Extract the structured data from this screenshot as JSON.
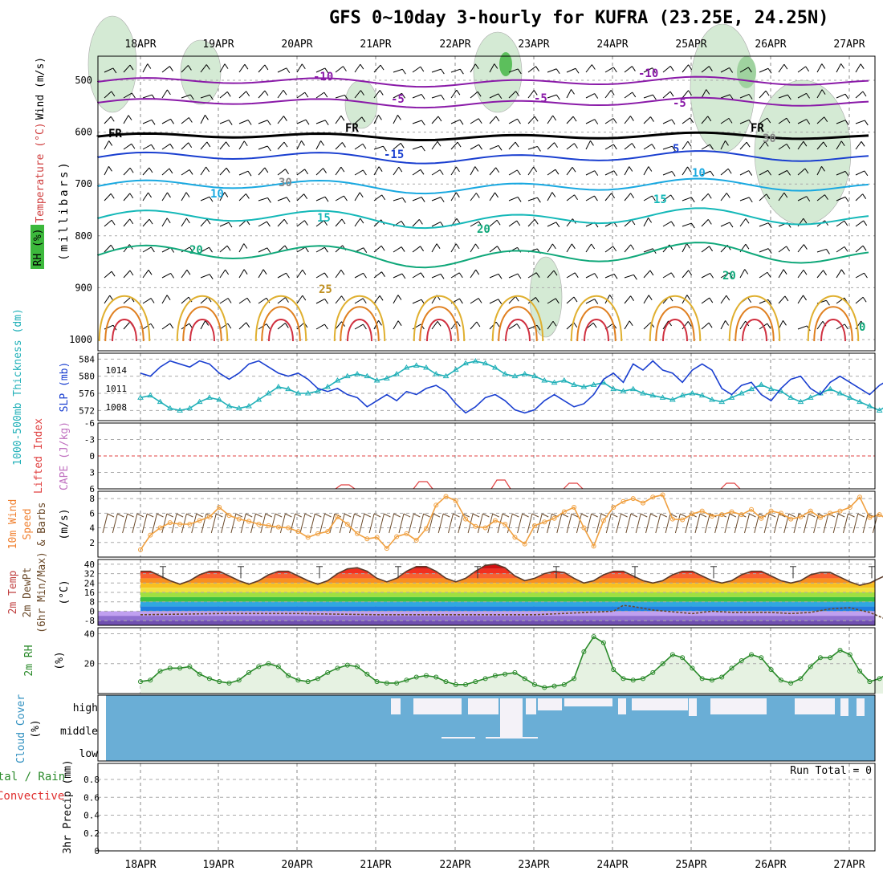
{
  "title": "GFS 0~10day 3-hourly for KUFRA (23.25E, 24.25N)",
  "days": [
    "18APR",
    "19APR",
    "20APR",
    "21APR",
    "22APR",
    "23APR",
    "24APR",
    "25APR",
    "26APR",
    "27APR"
  ],
  "panels": {
    "upper": {
      "ylabel_wind": "Wind (m/s)",
      "ylabel_temp": "Temperature (°C)",
      "ylabel_rh": "RH (%)",
      "ylabel_units": "(millibars)",
      "yticks": [
        "500",
        "600",
        "700",
        "800",
        "900",
        "1000"
      ],
      "labels": [
        "-10",
        "-10",
        "-5",
        "-5",
        "FR",
        "FR",
        "FR",
        "-5",
        "5",
        "-15",
        "10",
        "10",
        "15",
        "15",
        "20",
        "20",
        "20",
        "25",
        "0",
        "30",
        "30"
      ]
    },
    "thickness": {
      "ylabel_left": "1000-500mb Thickness (dm)",
      "ylabel_right": "SLP (mb)",
      "yticks_left": [
        "584",
        "580",
        "576",
        "572"
      ],
      "yticks_right": [
        "1014",
        "1011",
        "1008"
      ]
    },
    "cape": {
      "ylabel_left": "Lifted Index",
      "ylabel_right": "CAPE (J/kg)",
      "yticks": [
        "-6",
        "-3",
        "0",
        "3",
        "6"
      ]
    },
    "wind10": {
      "ylabel_a": "10m Wind",
      "ylabel_b": "Speed",
      "ylabel_c": "& Barbs",
      "ylabel_units": "(m/s)",
      "yticks": [
        "8",
        "6",
        "4",
        "2"
      ]
    },
    "temp2m": {
      "ylabel_a": "2m Temp",
      "ylabel_b": "2m DewPt",
      "ylabel_c": "(6hr Min/Max)",
      "ylabel_units": "(°C)",
      "yticks": [
        "40",
        "32",
        "24",
        "16",
        "8",
        "0",
        "-8"
      ]
    },
    "rh2m": {
      "ylabel": "2m RH",
      "ylabel_units": "(%)",
      "yticks": [
        "40",
        "20"
      ]
    },
    "cloud": {
      "ylabel": "Cloud Cover",
      "ylabel_units": "(%)",
      "levels": [
        "high",
        "middle",
        "low"
      ]
    },
    "precip": {
      "ylabel_a": "Total / Rain",
      "ylabel_b": "Convective",
      "ylabel_c": "3hr Precip (mm)",
      "yticks": [
        "0.8",
        "0.6",
        "0.4",
        "0.2",
        "0"
      ],
      "run_total": "Run Total = 0"
    }
  },
  "chart_data": [
    {
      "type": "line",
      "name": "sea level pressure",
      "ylabel": "SLP (mb)",
      "x_hours": [
        0,
        3,
        6,
        9,
        12,
        15,
        18,
        21,
        24,
        27,
        30,
        33,
        36,
        39,
        42,
        45,
        48,
        51,
        54,
        57,
        60,
        63,
        66,
        69,
        72,
        75,
        78,
        81,
        84,
        87,
        90,
        93,
        96,
        99,
        102,
        105,
        108,
        111,
        114,
        117,
        120,
        123,
        126,
        129,
        132,
        135,
        138,
        141,
        144,
        147,
        150,
        153,
        156,
        159,
        162,
        165,
        168,
        171,
        174,
        177,
        180,
        183,
        186,
        189,
        192,
        195,
        198,
        201,
        204,
        207,
        210,
        213,
        216,
        219,
        222,
        225,
        228,
        231,
        234
      ],
      "values": [
        1013.5,
        1013,
        1014.5,
        1015.5,
        1015,
        1014.5,
        1015.5,
        1015,
        1013.5,
        1012.5,
        1013.5,
        1015,
        1015.5,
        1014.5,
        1013.5,
        1013,
        1013.5,
        1012.5,
        1011,
        1010.5,
        1011,
        1010,
        1009.5,
        1008,
        1009,
        1010,
        1009,
        1010.5,
        1010,
        1011,
        1011.5,
        1010.5,
        1008.5,
        1007,
        1008,
        1009.5,
        1010,
        1009,
        1007.5,
        1007,
        1007.5,
        1009,
        1010,
        1009,
        1008,
        1008.5,
        1010,
        1012.5,
        1013.5,
        1012,
        1015,
        1014,
        1015.5,
        1014,
        1013.5,
        1012,
        1014,
        1015,
        1014,
        1011,
        1010,
        1011.5,
        1012,
        1010,
        1009,
        1011,
        1012.5,
        1013,
        1011,
        1010,
        1012,
        1013,
        1012,
        1011,
        1010,
        1011.5,
        1012.5,
        1013,
        1015
      ],
      "ylim": [
        1006,
        1016.5
      ]
    },
    {
      "type": "line",
      "name": "1000-500mb thickness",
      "ylabel": "1000-500mb Thickness (dm)",
      "x_hours": [
        0,
        3,
        6,
        9,
        12,
        15,
        18,
        21,
        24,
        27,
        30,
        33,
        36,
        39,
        42,
        45,
        48,
        51,
        54,
        57,
        60,
        63,
        66,
        69,
        72,
        75,
        78,
        81,
        84,
        87,
        90,
        93,
        96,
        99,
        102,
        105,
        108,
        111,
        114,
        117,
        120,
        123,
        126,
        129,
        132,
        135,
        138,
        141,
        144,
        147,
        150,
        153,
        156,
        159,
        162,
        165,
        168,
        171,
        174,
        177,
        180,
        183,
        186,
        189,
        192,
        195,
        198,
        201,
        204,
        207,
        210,
        213,
        216,
        219,
        222,
        225,
        228,
        231,
        234
      ],
      "values": [
        575,
        575.5,
        574,
        572.5,
        572,
        572.5,
        574,
        575,
        574.5,
        573,
        572.5,
        573,
        574.5,
        576,
        577.5,
        577,
        576,
        576,
        576.5,
        577.5,
        579,
        580,
        580.5,
        580,
        579,
        579.5,
        580.5,
        582,
        582.5,
        582,
        580.5,
        580,
        581.5,
        583,
        583.5,
        583,
        582,
        580.5,
        580,
        580.5,
        580,
        579,
        578.5,
        579,
        578,
        577.5,
        578,
        578.5,
        577,
        576.5,
        577,
        576,
        575.5,
        575,
        574.5,
        575.5,
        576,
        575.5,
        574.5,
        574,
        575,
        576,
        577,
        578,
        577,
        576.5,
        575,
        574,
        575,
        576,
        577,
        576,
        575,
        574,
        573,
        572,
        573.5,
        574,
        572
      ],
      "ylim": [
        570,
        585
      ]
    },
    {
      "type": "line",
      "name": "10m wind speed",
      "ylabel": "(m/s)",
      "x_hours": [
        0,
        3,
        6,
        9,
        12,
        15,
        18,
        21,
        24,
        27,
        30,
        33,
        36,
        39,
        42,
        45,
        48,
        51,
        54,
        57,
        60,
        63,
        66,
        69,
        72,
        75,
        78,
        81,
        84,
        87,
        90,
        93,
        96,
        99,
        102,
        105,
        108,
        111,
        114,
        117,
        120,
        123,
        126,
        129,
        132,
        135,
        138,
        141,
        144,
        147,
        150,
        153,
        156,
        159,
        162,
        165,
        168,
        171,
        174,
        177,
        180,
        183,
        186,
        189,
        192,
        195,
        198,
        201,
        204,
        207,
        210,
        213,
        216,
        219,
        222,
        225,
        228,
        231,
        234
      ],
      "values": [
        1,
        3,
        4,
        4.7,
        4.5,
        4.5,
        5,
        5.5,
        6.8,
        5.7,
        5.2,
        4.9,
        4.5,
        4.3,
        4.1,
        4,
        3.5,
        2.7,
        3.2,
        3.5,
        5.5,
        4.5,
        3.2,
        2.5,
        2.7,
        1.2,
        2.8,
        3.2,
        2.3,
        3.9,
        7.1,
        8.3,
        7.7,
        5.2,
        4.2,
        4,
        5,
        4.5,
        2.7,
        1.8,
        4.3,
        4.8,
        5.3,
        6.2,
        6.8,
        4,
        1.5,
        5,
        6.8,
        7.6,
        8,
        7.4,
        8.2,
        8.5,
        5.2,
        5.1,
        5.9,
        6.3,
        5.6,
        5.8,
        6.2,
        5.8,
        6.5,
        5.3,
        6.3,
        6,
        5.2,
        5.5,
        6.3,
        5.4,
        6,
        6.3,
        6.8,
        8.2,
        5.4,
        5.8,
        5,
        4.6,
        4.7
      ],
      "ylim": [
        0,
        9
      ]
    },
    {
      "type": "line",
      "name": "2m temperature",
      "ylabel": "(°C)",
      "x_hours": [
        0,
        3,
        6,
        9,
        12,
        15,
        18,
        21,
        24,
        27,
        30,
        33,
        36,
        39,
        42,
        45,
        48,
        51,
        54,
        57,
        60,
        63,
        66,
        69,
        72,
        75,
        78,
        81,
        84,
        87,
        90,
        93,
        96,
        99,
        102,
        105,
        108,
        111,
        114,
        117,
        120,
        123,
        126,
        129,
        132,
        135,
        138,
        141,
        144,
        147,
        150,
        153,
        156,
        159,
        162,
        165,
        168,
        171,
        174,
        177,
        180,
        183,
        186,
        189,
        192,
        195,
        198,
        201,
        204,
        207,
        210,
        213,
        216,
        219,
        222,
        225,
        228,
        231,
        234
      ],
      "values": [
        34,
        34,
        30,
        26,
        23,
        26,
        31,
        34,
        34,
        30,
        26,
        23,
        26,
        31,
        34,
        34,
        30,
        26,
        23,
        26,
        32,
        36,
        37,
        34,
        28,
        25,
        28,
        34,
        38,
        38,
        34,
        28,
        25,
        28,
        34,
        39,
        40,
        37,
        30,
        26,
        28,
        32,
        34,
        33,
        28,
        24,
        26,
        31,
        34,
        34,
        30,
        26,
        24,
        26,
        31,
        34,
        34,
        30,
        26,
        24,
        26,
        31,
        34,
        34,
        30,
        26,
        24,
        26,
        31,
        33,
        33,
        29,
        25,
        22,
        24,
        28,
        32,
        31,
        28
      ],
      "ylim": [
        -12,
        44
      ]
    },
    {
      "type": "line",
      "name": "2m dew point",
      "ylabel": "(°C)",
      "x_hours": [
        0,
        24,
        48,
        72,
        96,
        120,
        144,
        147,
        150,
        156,
        168,
        174,
        180,
        192,
        198,
        204,
        210,
        216,
        222,
        228,
        234
      ],
      "values": [
        -3,
        -2,
        -2,
        -3,
        -3,
        -3,
        0,
        5,
        4,
        1,
        -2,
        0,
        -1,
        -1,
        -2,
        -1,
        2,
        3,
        -1,
        -8,
        -3
      ],
      "ylim": [
        -12,
        44
      ]
    },
    {
      "type": "area",
      "name": "2m relative humidity",
      "ylabel": "(%)",
      "x_hours": [
        0,
        3,
        6,
        9,
        12,
        15,
        18,
        21,
        24,
        27,
        30,
        33,
        36,
        39,
        42,
        45,
        48,
        51,
        54,
        57,
        60,
        63,
        66,
        69,
        72,
        75,
        78,
        81,
        84,
        87,
        90,
        93,
        96,
        99,
        102,
        105,
        108,
        111,
        114,
        117,
        120,
        123,
        126,
        129,
        132,
        135,
        138,
        141,
        144,
        147,
        150,
        153,
        156,
        159,
        162,
        165,
        168,
        171,
        174,
        177,
        180,
        183,
        186,
        189,
        192,
        195,
        198,
        201,
        204,
        207,
        210,
        213,
        216,
        219,
        222,
        225,
        228,
        231,
        234
      ],
      "values": [
        8,
        9,
        15,
        17,
        17,
        18,
        13,
        10,
        8,
        7,
        9,
        14,
        18,
        20,
        18,
        12,
        9,
        8,
        10,
        14,
        17,
        19,
        18,
        13,
        8,
        7,
        7,
        9,
        11,
        12,
        11,
        8,
        6,
        6,
        8,
        10,
        12,
        13,
        14,
        10,
        6,
        4,
        5,
        6,
        10,
        28,
        38,
        34,
        16,
        10,
        9,
        10,
        14,
        20,
        26,
        24,
        17,
        10,
        9,
        11,
        17,
        22,
        26,
        24,
        16,
        9,
        7,
        10,
        18,
        24,
        24,
        29,
        26,
        15,
        8,
        10,
        14,
        25,
        23
      ],
      "ylim": [
        0,
        44
      ]
    }
  ]
}
